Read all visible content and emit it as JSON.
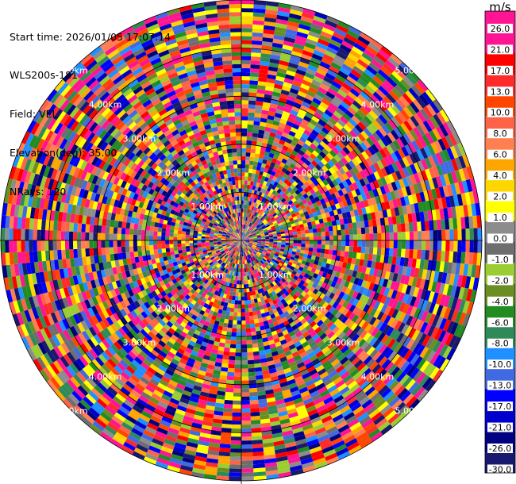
{
  "header": {
    "start_time": "Start time: 2026/01/05 17:07:14",
    "instrument": "WLS200s-181",
    "field": "Field: VEL",
    "elevation": "Elevation(deg): 35.00",
    "nrays": "NRays: 120"
  },
  "chart_data": {
    "type": "heatmap",
    "subtype": "polar-ppi",
    "field": "VEL",
    "units": "m/s",
    "n_rays": 120,
    "range_rings_labels": [
      "1.00km",
      "2.00km",
      "3.00km",
      "4.00km",
      "5.00km"
    ],
    "colorbar": {
      "unit_label": "m/s",
      "ticks": [
        "26.0",
        "21.0",
        "17.0",
        "13.0",
        "10.0",
        "8.0",
        "6.0",
        "4.0",
        "2.0",
        "1.0",
        "0.0",
        "-1.0",
        "-2.0",
        "-4.0",
        "-6.0",
        "-8.0",
        "-10.0",
        "-13.0",
        "-17.0",
        "-21.0",
        "-26.0",
        "-30.0"
      ],
      "colors": [
        "#ff1493",
        "#ff1493",
        "#ff0000",
        "#ff2a2a",
        "#ff4500",
        "#ff6347",
        "#ff7f50",
        "#ffa500",
        "#ffd700",
        "#ffff00",
        "#8c8c8c",
        "#6e6e6e",
        "#9acd32",
        "#6b8e23",
        "#228b22",
        "#2e8b57",
        "#1e90ff",
        "#4169e1",
        "#0000ff",
        "#0000cd",
        "#000080",
        "#191970"
      ]
    }
  }
}
